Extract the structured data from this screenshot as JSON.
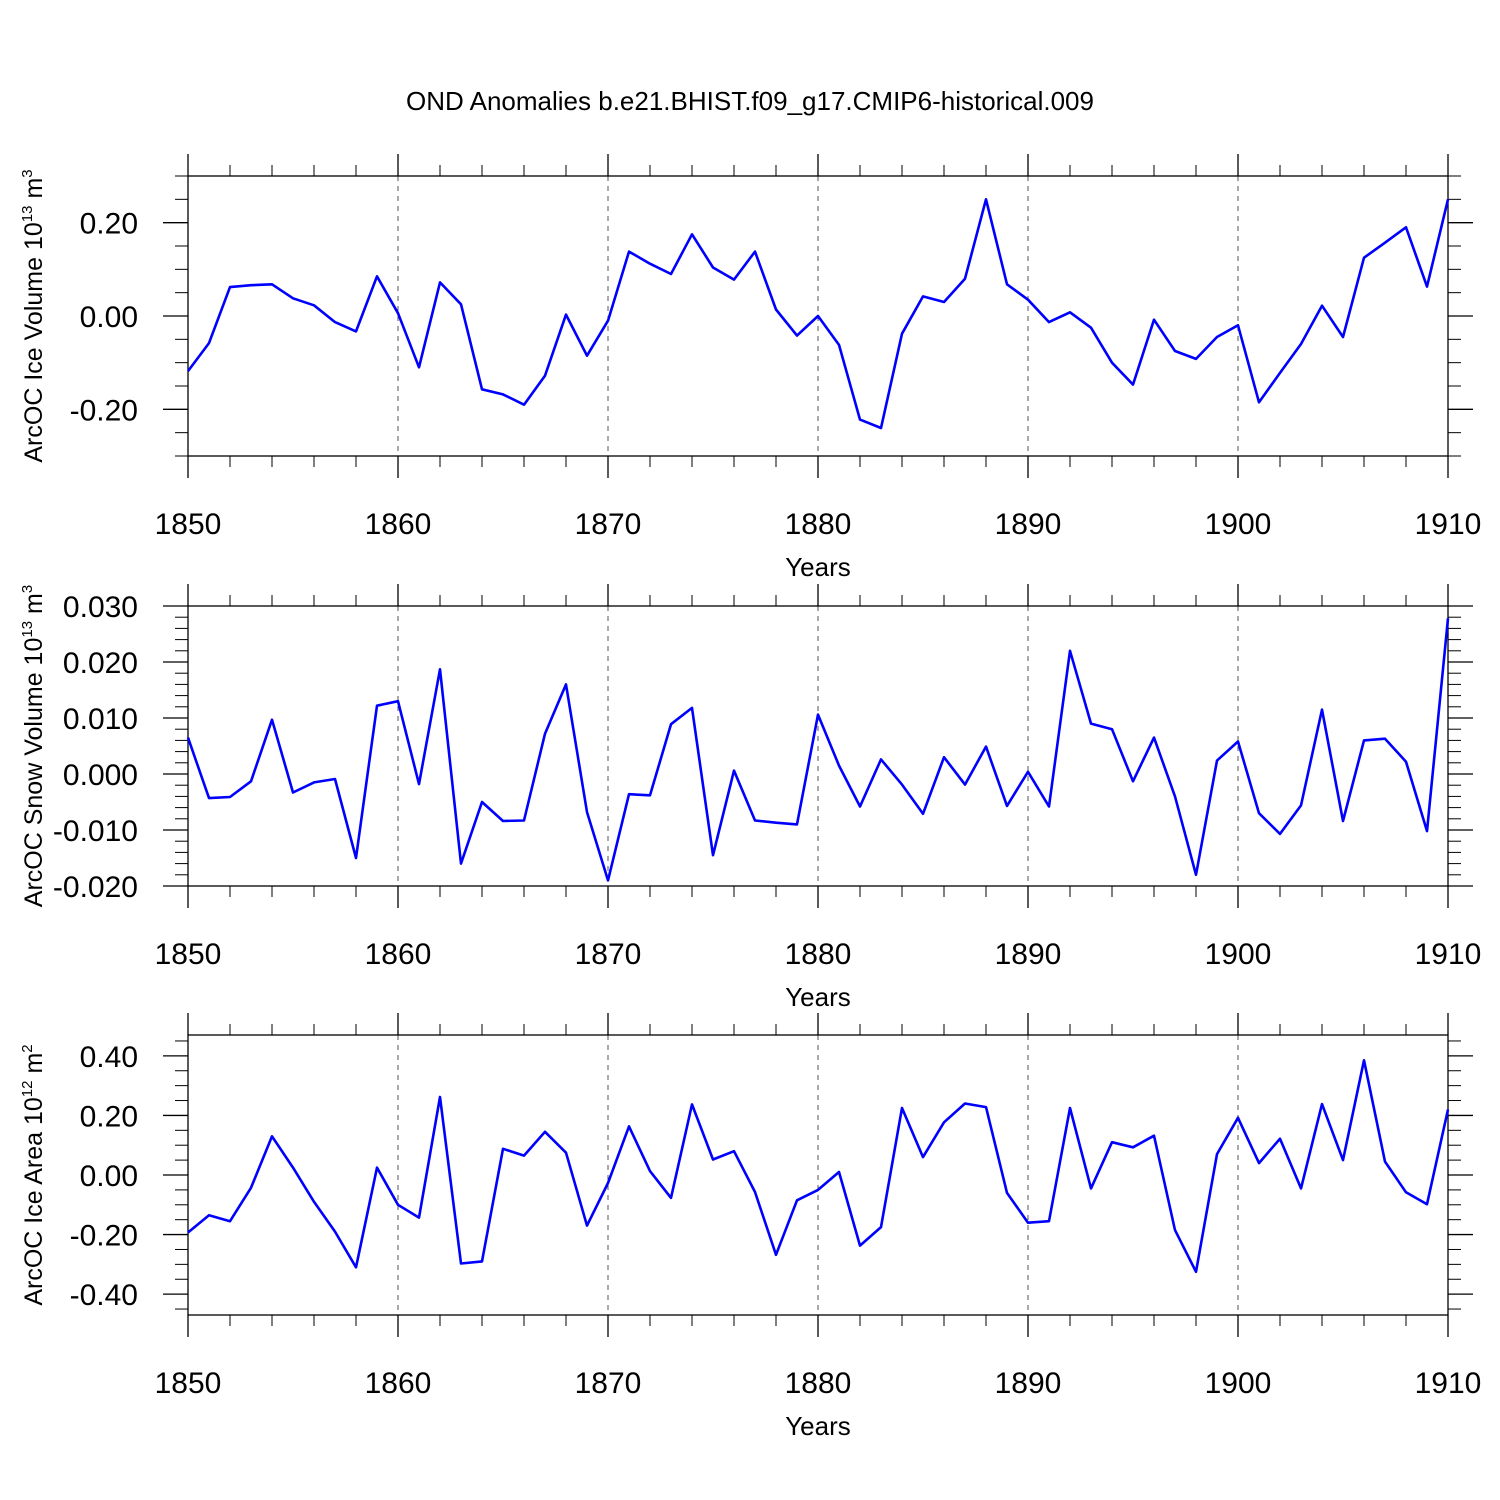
{
  "chart_data": {
    "title": "OND Anomalies b.e21.BHIST.f09_g17.CMIP6-historical.009",
    "colors": {
      "line": "#0000ff",
      "axis": "#000000",
      "grid": "#555555"
    },
    "panels": [
      {
        "type": "line",
        "ylabel_main": "ArcOC Ice Volume 10",
        "ylabel_exp": "13",
        "ylabel_unit": "m",
        "ylabel_unit_exp": "3",
        "xlabel": "Years",
        "xlim": [
          1850,
          1910
        ],
        "ylim": [
          -0.3,
          0.3
        ],
        "xticks": [
          1850,
          1860,
          1870,
          1880,
          1890,
          1900,
          1910
        ],
        "xtick_labels": [
          "1850",
          "1860",
          "1870",
          "1880",
          "1890",
          "1900",
          "1910"
        ],
        "yticks": [
          -0.2,
          0.0,
          0.2
        ],
        "ytick_labels": [
          "-0.20",
          "0.00",
          "0.20"
        ],
        "yminor_step": 0.05,
        "grid_x": true,
        "years": [
          1850,
          1851,
          1852,
          1853,
          1854,
          1855,
          1856,
          1857,
          1858,
          1859,
          1860,
          1861,
          1862,
          1863,
          1864,
          1865,
          1866,
          1867,
          1868,
          1869,
          1870,
          1871,
          1872,
          1873,
          1874,
          1875,
          1876,
          1877,
          1878,
          1879,
          1880,
          1881,
          1882,
          1883,
          1884,
          1885,
          1886,
          1887,
          1888,
          1889,
          1890,
          1891,
          1892,
          1893,
          1894,
          1895,
          1896,
          1897,
          1898,
          1899,
          1900,
          1901,
          1902,
          1903,
          1904,
          1905,
          1906,
          1907,
          1908,
          1909,
          1910
        ],
        "values": [
          -0.118,
          -0.058,
          0.062,
          0.066,
          0.068,
          0.038,
          0.023,
          -0.013,
          -0.033,
          0.085,
          0.006,
          -0.11,
          0.072,
          0.025,
          -0.157,
          -0.168,
          -0.19,
          -0.128,
          0.003,
          -0.085,
          -0.01,
          0.138,
          0.112,
          0.09,
          0.175,
          0.104,
          0.078,
          0.138,
          0.014,
          -0.042,
          0.0,
          -0.062,
          -0.222,
          -0.24,
          -0.038,
          0.042,
          0.03,
          0.08,
          0.25,
          0.068,
          0.035,
          -0.013,
          0.008,
          -0.025,
          -0.1,
          -0.147,
          -0.008,
          -0.075,
          -0.092,
          -0.045,
          -0.02,
          -0.185,
          -0.122,
          -0.06,
          0.022,
          -0.045,
          0.125,
          0.157,
          0.19,
          0.063,
          0.25
        ]
      },
      {
        "type": "line",
        "ylabel_main": "ArcOC Snow Volume 10",
        "ylabel_exp": "13",
        "ylabel_unit": "m",
        "ylabel_unit_exp": "3",
        "xlabel": "Years",
        "xlim": [
          1850,
          1910
        ],
        "ylim": [
          -0.02,
          0.03
        ],
        "xticks": [
          1850,
          1860,
          1870,
          1880,
          1890,
          1900,
          1910
        ],
        "xtick_labels": [
          "1850",
          "1860",
          "1870",
          "1880",
          "1890",
          "1900",
          "1910"
        ],
        "yticks": [
          -0.02,
          -0.01,
          0.0,
          0.01,
          0.02,
          0.03
        ],
        "ytick_labels": [
          "-0.020",
          "-0.010",
          "0.000",
          "0.010",
          "0.020",
          "0.030"
        ],
        "yminor_step": 0.002,
        "grid_x": true,
        "years": [
          1850,
          1851,
          1852,
          1853,
          1854,
          1855,
          1856,
          1857,
          1858,
          1859,
          1860,
          1861,
          1862,
          1863,
          1864,
          1865,
          1866,
          1867,
          1868,
          1869,
          1870,
          1871,
          1872,
          1873,
          1874,
          1875,
          1876,
          1877,
          1878,
          1879,
          1880,
          1881,
          1882,
          1883,
          1884,
          1885,
          1886,
          1887,
          1888,
          1889,
          1890,
          1891,
          1892,
          1893,
          1894,
          1895,
          1896,
          1897,
          1898,
          1899,
          1900,
          1901,
          1902,
          1903,
          1904,
          1905,
          1906,
          1907,
          1908,
          1909,
          1910
        ],
        "values": [
          0.0065,
          -0.0043,
          -0.0041,
          -0.0013,
          0.0097,
          -0.0033,
          -0.0015,
          -0.0009,
          -0.015,
          0.0122,
          0.013,
          -0.0018,
          0.0187,
          -0.016,
          -0.005,
          -0.0084,
          -0.0083,
          0.0072,
          0.016,
          -0.0068,
          -0.019,
          -0.0036,
          -0.0038,
          0.0089,
          0.0118,
          -0.0145,
          0.0006,
          -0.0083,
          -0.0087,
          -0.009,
          0.0106,
          0.0015,
          -0.0058,
          0.0026,
          -0.0019,
          -0.0071,
          0.003,
          -0.0019,
          0.0049,
          -0.0057,
          0.0004,
          -0.0058,
          0.022,
          0.009,
          0.008,
          -0.0013,
          0.0065,
          -0.004,
          -0.018,
          0.0024,
          0.0058,
          -0.007,
          -0.0107,
          -0.0056,
          0.0115,
          -0.0084,
          0.006,
          0.0063,
          0.0022,
          -0.0102,
          0.0278
        ]
      },
      {
        "type": "line",
        "ylabel_main": "ArcOC Ice Area 10",
        "ylabel_exp": "12",
        "ylabel_unit": "m",
        "ylabel_unit_exp": "2",
        "xlabel": "Years",
        "xlim": [
          1850,
          1910
        ],
        "ylim": [
          -0.47,
          0.47
        ],
        "xticks": [
          1850,
          1860,
          1870,
          1880,
          1890,
          1900,
          1910
        ],
        "xtick_labels": [
          "1850",
          "1860",
          "1870",
          "1880",
          "1890",
          "1900",
          "1910"
        ],
        "yticks": [
          -0.4,
          -0.2,
          0.0,
          0.2,
          0.4
        ],
        "ytick_labels": [
          "-0.40",
          "-0.20",
          "0.00",
          "0.20",
          "0.40"
        ],
        "yminor_step": 0.05,
        "grid_x": true,
        "years": [
          1850,
          1851,
          1852,
          1853,
          1854,
          1855,
          1856,
          1857,
          1858,
          1859,
          1860,
          1861,
          1862,
          1863,
          1864,
          1865,
          1866,
          1867,
          1868,
          1869,
          1870,
          1871,
          1872,
          1873,
          1874,
          1875,
          1876,
          1877,
          1878,
          1879,
          1880,
          1881,
          1882,
          1883,
          1884,
          1885,
          1886,
          1887,
          1888,
          1889,
          1890,
          1891,
          1892,
          1893,
          1894,
          1895,
          1896,
          1897,
          1898,
          1899,
          1900,
          1901,
          1902,
          1903,
          1904,
          1905,
          1906,
          1907,
          1908,
          1909,
          1910
        ],
        "values": [
          -0.193,
          -0.135,
          -0.155,
          -0.043,
          0.13,
          0.025,
          -0.09,
          -0.19,
          -0.31,
          0.025,
          -0.1,
          -0.143,
          0.262,
          -0.297,
          -0.29,
          0.088,
          0.065,
          0.145,
          0.075,
          -0.17,
          -0.027,
          0.163,
          0.013,
          -0.077,
          0.237,
          0.052,
          0.08,
          -0.057,
          -0.268,
          -0.085,
          -0.05,
          0.01,
          -0.237,
          -0.175,
          0.225,
          0.06,
          0.177,
          0.24,
          0.228,
          -0.06,
          -0.16,
          -0.155,
          0.225,
          -0.045,
          0.11,
          0.093,
          0.132,
          -0.185,
          -0.325,
          0.07,
          0.192,
          0.04,
          0.122,
          -0.045,
          0.238,
          0.05,
          0.385,
          0.045,
          -0.058,
          -0.098,
          0.22
        ]
      }
    ]
  }
}
